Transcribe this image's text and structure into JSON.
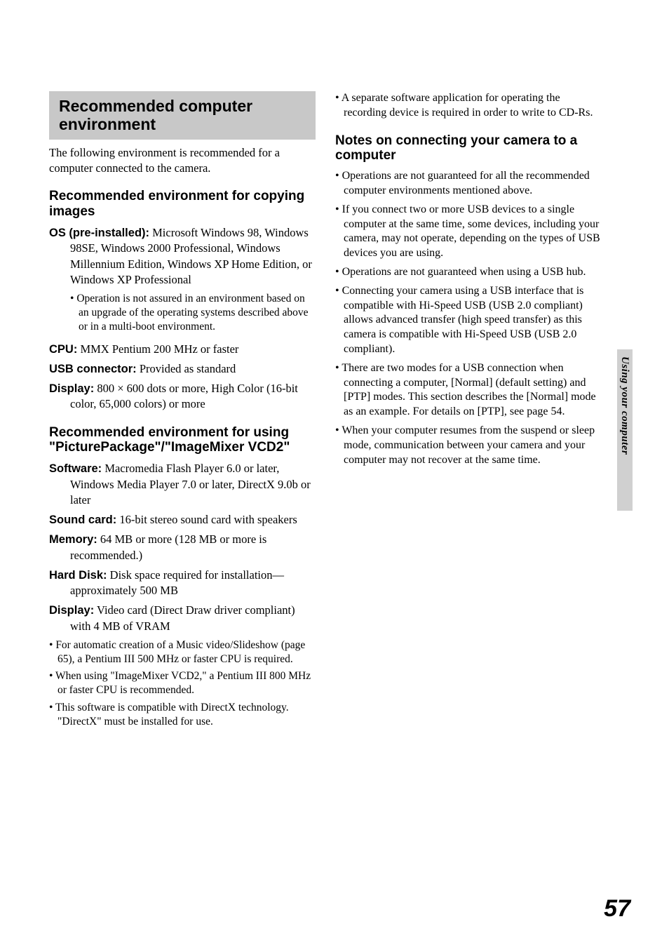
{
  "sideTab": "Using your computer",
  "pageNumber": "57",
  "left": {
    "sectionTitle": "Recommended computer environment",
    "intro": "The following environment is recommended for a computer connected to the camera.",
    "env1": {
      "heading": "Recommended environment for copying images",
      "specs": [
        {
          "label": "OS (pre-installed):",
          "value": " Microsoft Windows 98, Windows 98SE, Windows 2000 Professional, Windows Millennium Edition, Windows XP Home Edition, or Windows XP Professional"
        }
      ],
      "subBullets": [
        "Operation is not assured in an environment based on an upgrade of the operating systems described above or in a multi-boot environment."
      ],
      "specs2": [
        {
          "label": "CPU:",
          "value": " MMX Pentium 200 MHz or faster"
        },
        {
          "label": "USB connector:",
          "value": " Provided as standard"
        },
        {
          "label": "Display:",
          "value": " 800 × 600 dots or more, High Color (16-bit color, 65,000 colors) or more"
        }
      ]
    },
    "env2": {
      "heading": "Recommended environment for using \"PicturePackage\"/\"ImageMixer VCD2\"",
      "specs": [
        {
          "label": "Software:",
          "value": " Macromedia Flash Player 6.0 or later, Windows Media Player 7.0 or later, DirectX 9.0b or later"
        },
        {
          "label": "Sound card:",
          "value": " 16-bit stereo sound card with speakers"
        },
        {
          "label": "Memory:",
          "value": " 64 MB or more (128 MB or more is recommended.)"
        },
        {
          "label": "Hard Disk:",
          "value": " Disk space required for installation—approximately 500 MB"
        },
        {
          "label": "Display:",
          "value": " Video card (Direct Draw driver compliant) with 4 MB of VRAM"
        }
      ],
      "bullets": [
        "For automatic creation of a Music video/Slideshow (page 65), a Pentium III 500 MHz or faster CPU is required.",
        "When using \"ImageMixer VCD2,\" a Pentium III 800 MHz or faster CPU is recommended.",
        "This software is compatible with DirectX technology. \"DirectX\" must be installed for use."
      ]
    }
  },
  "right": {
    "topBullets": [
      "A separate software application for operating the recording device is required in order to write to CD-Rs."
    ],
    "notes": {
      "heading": "Notes on connecting your camera to a computer",
      "bullets": [
        "Operations are not guaranteed for all the recommended computer environments mentioned above.",
        "If you connect two or more USB devices to a single computer at the same time, some devices, including your camera, may not operate, depending on the types of USB devices you are using.",
        "Operations are not guaranteed when using a USB hub.",
        "Connecting your camera using a USB interface that is compatible with Hi-Speed USB (USB 2.0 compliant) allows advanced transfer (high speed transfer) as this camera is compatible with Hi-Speed USB (USB 2.0 compliant).",
        "There are two modes for a USB connection when connecting a computer, [Normal] (default setting) and [PTP] modes. This section describes the [Normal] mode as an example. For details on [PTP], see page 54.",
        "When your computer resumes from the suspend or sleep mode, communication between your camera and your computer may not recover at the same time."
      ]
    }
  }
}
